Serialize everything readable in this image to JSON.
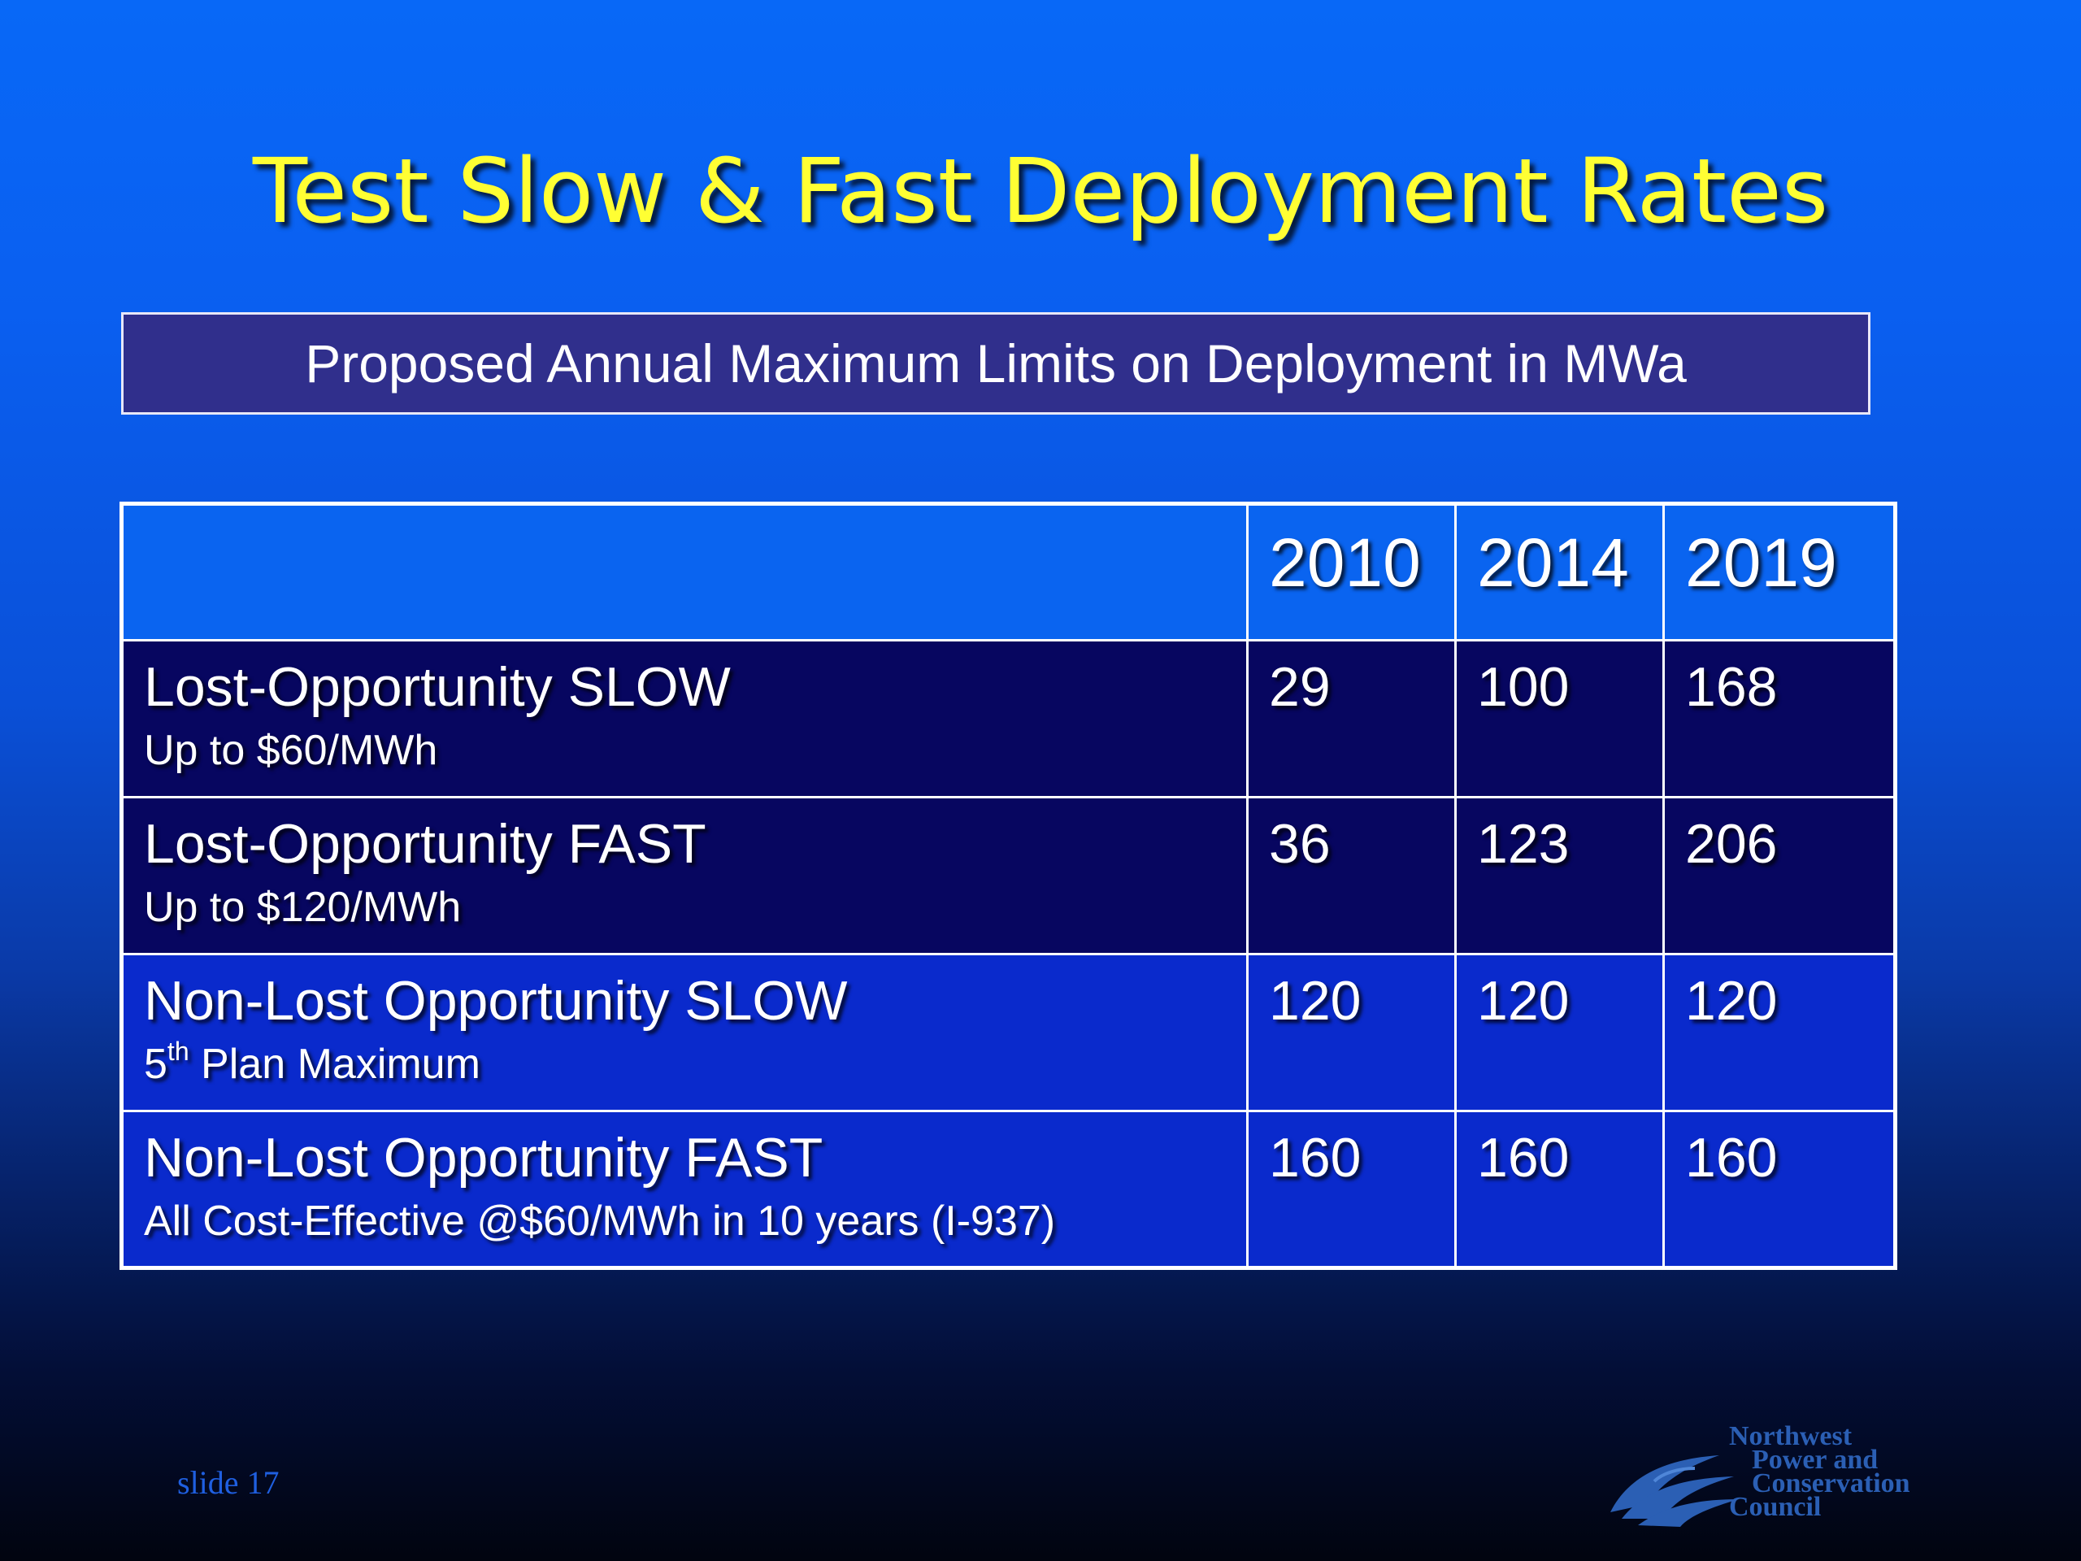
{
  "slide": {
    "title": "Test Slow & Fast Deployment Rates",
    "subtitle": "Proposed Annual Maximum Limits on Deployment in MWa",
    "slide_number": "slide 17"
  },
  "table": {
    "columns": [
      "",
      "2010",
      "2014",
      "2019"
    ],
    "rows": [
      {
        "title": "Lost-Opportunity SLOW",
        "sub": "Up to $60/MWh",
        "sub_sup": "",
        "sub_rest": "",
        "values": [
          "29",
          "100",
          "168"
        ]
      },
      {
        "title": "Lost-Opportunity FAST",
        "sub": "Up to $120/MWh",
        "sub_sup": "",
        "sub_rest": "",
        "values": [
          "36",
          "123",
          "206"
        ]
      },
      {
        "title": "Non-Lost Opportunity SLOW",
        "sub": "5",
        "sub_sup": "th",
        "sub_rest": " Plan Maximum",
        "values": [
          "120",
          "120",
          "120"
        ]
      },
      {
        "title": "Non-Lost Opportunity FAST",
        "sub": "All Cost-Effective @$60/MWh in 10 years (I-937)",
        "sub_sup": "",
        "sub_rest": "",
        "values": [
          "160",
          "160",
          "160"
        ]
      }
    ]
  },
  "logo": {
    "icon": "council-wave-logo",
    "lines": [
      "Northwest",
      "Power and",
      "Conservation",
      "Council"
    ]
  },
  "colors": {
    "title": "#ffff33",
    "subtitle_box": "#302f8c",
    "header_row": "#0a64f0",
    "dark_rows": "#070660",
    "mid_rows": "#0a2acc"
  }
}
